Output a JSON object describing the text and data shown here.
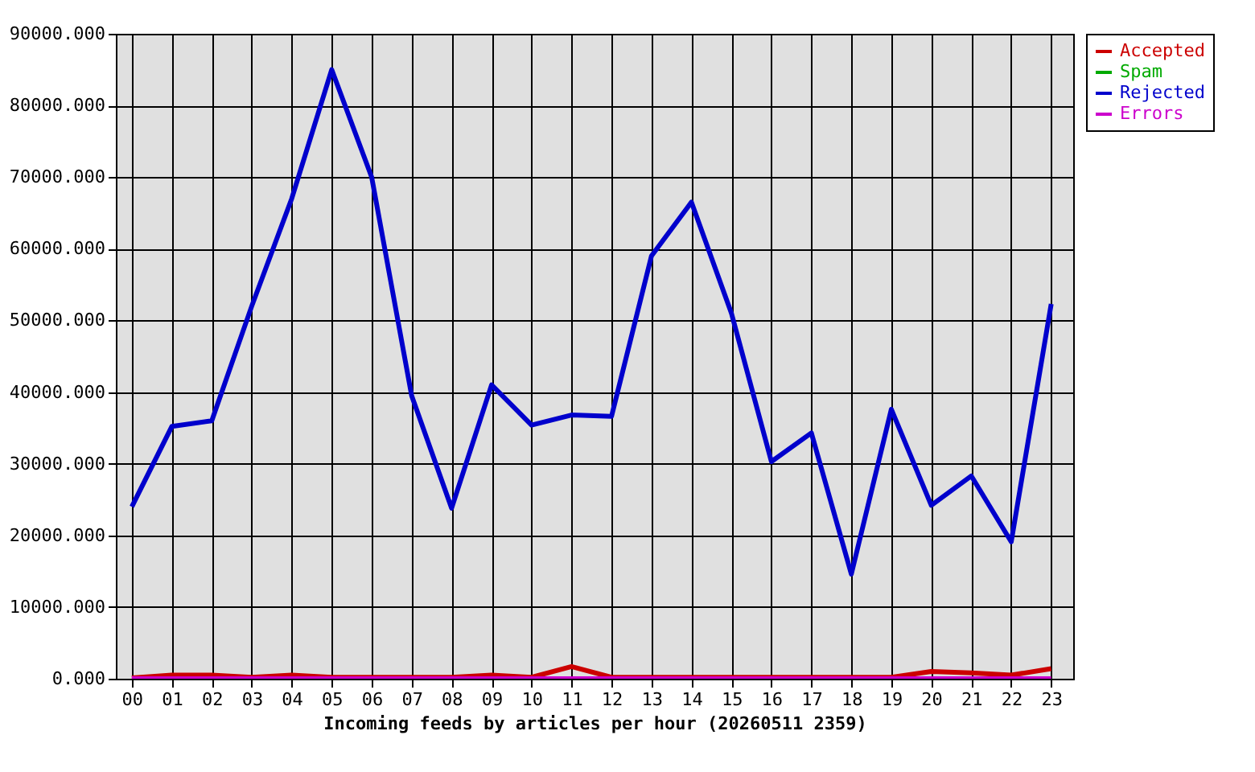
{
  "chart_data": {
    "type": "line",
    "xlabel": "Incoming feeds by articles per hour (20260511 2359)",
    "categories": [
      "00",
      "01",
      "02",
      "03",
      "04",
      "05",
      "06",
      "07",
      "08",
      "09",
      "10",
      "11",
      "12",
      "13",
      "14",
      "15",
      "16",
      "17",
      "18",
      "19",
      "20",
      "21",
      "22",
      "23"
    ],
    "series": [
      {
        "name": "Accepted",
        "color": "#cc0000",
        "values": [
          100,
          500,
          500,
          200,
          500,
          200,
          200,
          200,
          200,
          500,
          200,
          1700,
          200,
          200,
          200,
          200,
          200,
          200,
          200,
          200,
          1000,
          800,
          500,
          1400
        ]
      },
      {
        "name": "Spam",
        "color": "#00aa00",
        "values": [
          null,
          null,
          null,
          null,
          null,
          null,
          null,
          null,
          null,
          null,
          null,
          null,
          null,
          null,
          null,
          null,
          null,
          null,
          null,
          null,
          null,
          null,
          null,
          null
        ]
      },
      {
        "name": "Rejected",
        "color": "#0000cc",
        "values": [
          24000,
          35200,
          36000,
          52000,
          67000,
          85000,
          70000,
          39500,
          23800,
          41000,
          35400,
          36800,
          36600,
          59000,
          66500,
          51000,
          30300,
          34300,
          14600,
          37600,
          24200,
          28300,
          19100,
          52300
        ]
      },
      {
        "name": "Errors",
        "color": "#cc00cc",
        "values": [
          0,
          0,
          0,
          0,
          0,
          0,
          0,
          0,
          0,
          0,
          0,
          0,
          0,
          0,
          0,
          0,
          0,
          0,
          0,
          0,
          0,
          0,
          0,
          0
        ]
      }
    ],
    "ylim": [
      0,
      90000
    ],
    "yticks": [
      {
        "value": 0,
        "label": "0.000"
      },
      {
        "value": 10000,
        "label": "10000.000"
      },
      {
        "value": 20000,
        "label": "20000.000"
      },
      {
        "value": 30000,
        "label": "30000.000"
      },
      {
        "value": 40000,
        "label": "40000.000"
      },
      {
        "value": 50000,
        "label": "50000.000"
      },
      {
        "value": 60000,
        "label": "60000.000"
      },
      {
        "value": 70000,
        "label": "70000.000"
      },
      {
        "value": 80000,
        "label": "80000.000"
      },
      {
        "value": 90000,
        "label": "90000.000"
      }
    ],
    "grid": true,
    "legend": "top right"
  }
}
